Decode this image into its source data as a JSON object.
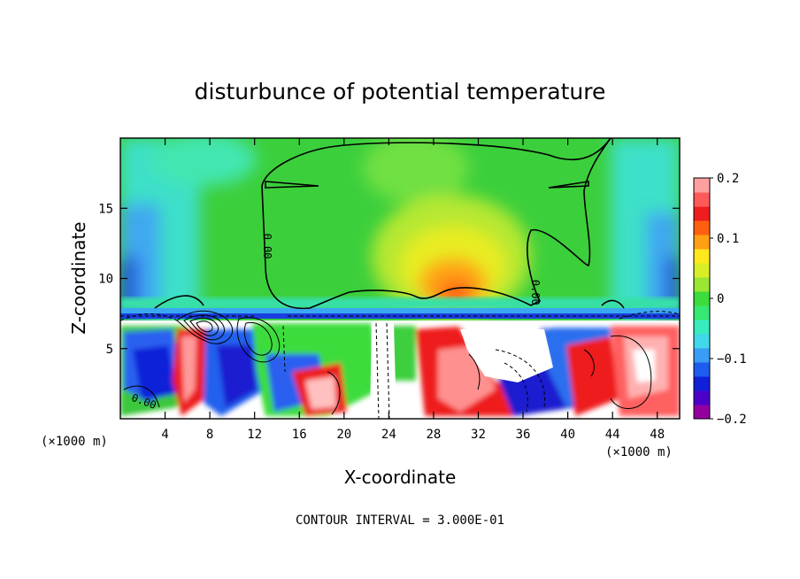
{
  "chart_data": {
    "type": "heatmap",
    "title": "disturbunce of potential temperature",
    "xlabel": "X-coordinate",
    "ylabel": "Z-coordinate",
    "x_unit_left": "(×1000 m)",
    "x_unit_right": "(×1000 m)",
    "footer": "CONTOUR INTERVAL = 3.000E-01",
    "xlim": [
      0,
      50
    ],
    "ylim": [
      0,
      20
    ],
    "x_ticks": [
      4,
      8,
      12,
      16,
      20,
      24,
      28,
      32,
      36,
      40,
      44,
      48
    ],
    "x_tick_labels": [
      "4",
      "8",
      "12",
      "16",
      "20",
      "24",
      "28",
      "32",
      "36",
      "40",
      "44",
      "48"
    ],
    "y_ticks": [
      5,
      10,
      15
    ],
    "y_tick_labels": [
      "5",
      "10",
      "15"
    ],
    "contour_labels": [
      {
        "text": "0.00",
        "x": 12.8,
        "z": 12.3
      },
      {
        "text": "0.00",
        "x": 36.8,
        "z": 9.0
      },
      {
        "text": "0.00",
        "x": 2.0,
        "z": 1.0
      }
    ],
    "colorbar": {
      "min": -0.2,
      "max": 0.2,
      "ticks": [
        0.2,
        0.1,
        0,
        -0.1,
        -0.2
      ],
      "tick_labels": [
        "0.2",
        "0.1",
        "0",
        "−0.1",
        "−0.2"
      ],
      "colors": [
        "#9400a0",
        "#4b00c8",
        "#1020d8",
        "#1e5cf0",
        "#3a9cf5",
        "#40d8ea",
        "#38ecc0",
        "#36e872",
        "#3cdc3c",
        "#9ae632",
        "#d8ee28",
        "#ffe81e",
        "#ffa014",
        "#ff6010",
        "#ee1e1e",
        "#ff5a5a",
        "#ffa0a0"
      ]
    },
    "field_features": [
      {
        "name": "warm core",
        "x": 30,
        "z": 8.8,
        "value": 0.12
      },
      {
        "name": "upper layer",
        "value": 0.01
      },
      {
        "name": "lateral cold",
        "x": 1,
        "z": 11,
        "value": -0.12
      },
      {
        "name": "lateral cold",
        "x": 49,
        "z": 11,
        "value": -0.12
      }
    ]
  }
}
